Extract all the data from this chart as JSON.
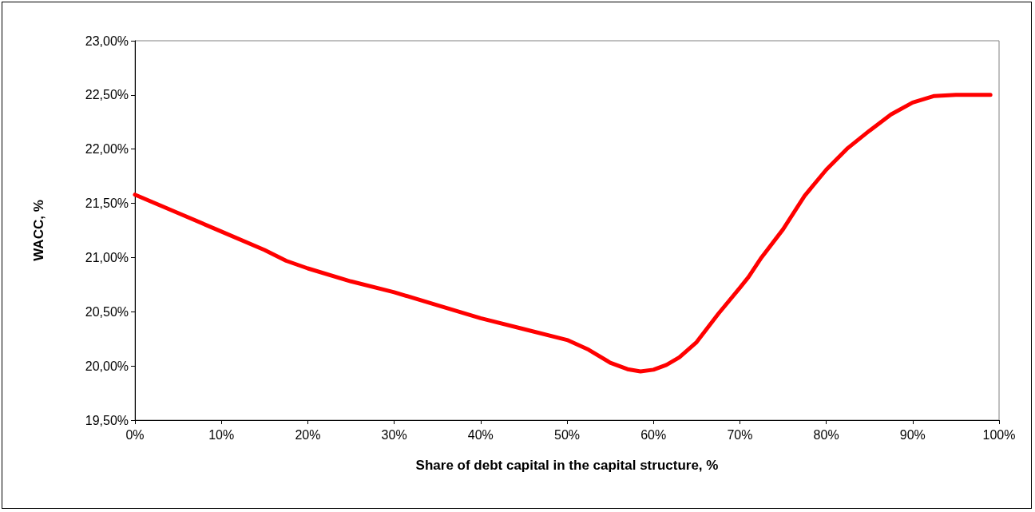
{
  "chart_data": {
    "type": "line",
    "xlabel": "Share of debt capital in the capital structure, %",
    "ylabel": "WACC, %",
    "x": [
      0,
      5,
      10,
      15,
      17.5,
      20,
      25,
      30,
      35,
      40,
      45,
      50,
      52.5,
      55,
      57,
      58.5,
      60,
      61.5,
      63,
      65,
      67.5,
      70,
      71,
      72.5,
      75,
      77.5,
      80,
      82.5,
      85,
      87.5,
      90,
      92.5,
      95,
      99
    ],
    "series": [
      {
        "color": "#ff0000",
        "values": [
          21.58,
          21.41,
          21.24,
          21.07,
          20.97,
          20.9,
          20.78,
          20.68,
          20.56,
          20.44,
          20.34,
          20.24,
          20.15,
          20.03,
          19.97,
          19.95,
          19.965,
          20.01,
          20.08,
          20.22,
          20.48,
          20.72,
          20.82,
          21.0,
          21.26,
          21.57,
          21.81,
          22.01,
          22.17,
          22.32,
          22.43,
          22.49,
          22.5,
          22.5
        ]
      }
    ],
    "xlim": [
      0,
      100
    ],
    "xticks": [
      {
        "value": 0,
        "label": "0%"
      },
      {
        "value": 10,
        "label": "10%"
      },
      {
        "value": 20,
        "label": "20%"
      },
      {
        "value": 30,
        "label": "30%"
      },
      {
        "value": 40,
        "label": "40%"
      },
      {
        "value": 50,
        "label": "50%"
      },
      {
        "value": 60,
        "label": "60%"
      },
      {
        "value": 70,
        "label": "70%"
      },
      {
        "value": 80,
        "label": "80%"
      },
      {
        "value": 90,
        "label": "90%"
      },
      {
        "value": 100,
        "label": "100%"
      }
    ],
    "ylim": [
      19.5,
      23
    ],
    "yticks": [
      {
        "value": 19.5,
        "label": "19,50%"
      },
      {
        "value": 20,
        "label": "20,00%"
      },
      {
        "value": 20.5,
        "label": "20,50%"
      },
      {
        "value": 21,
        "label": "21,00%"
      },
      {
        "value": 21.5,
        "label": "21,50%"
      },
      {
        "value": 22,
        "label": "22,00%"
      },
      {
        "value": 22.5,
        "label": "22,50%"
      },
      {
        "value": 23,
        "label": "23,00%"
      }
    ],
    "grid": false,
    "marker": "none",
    "line_style": "solid"
  }
}
